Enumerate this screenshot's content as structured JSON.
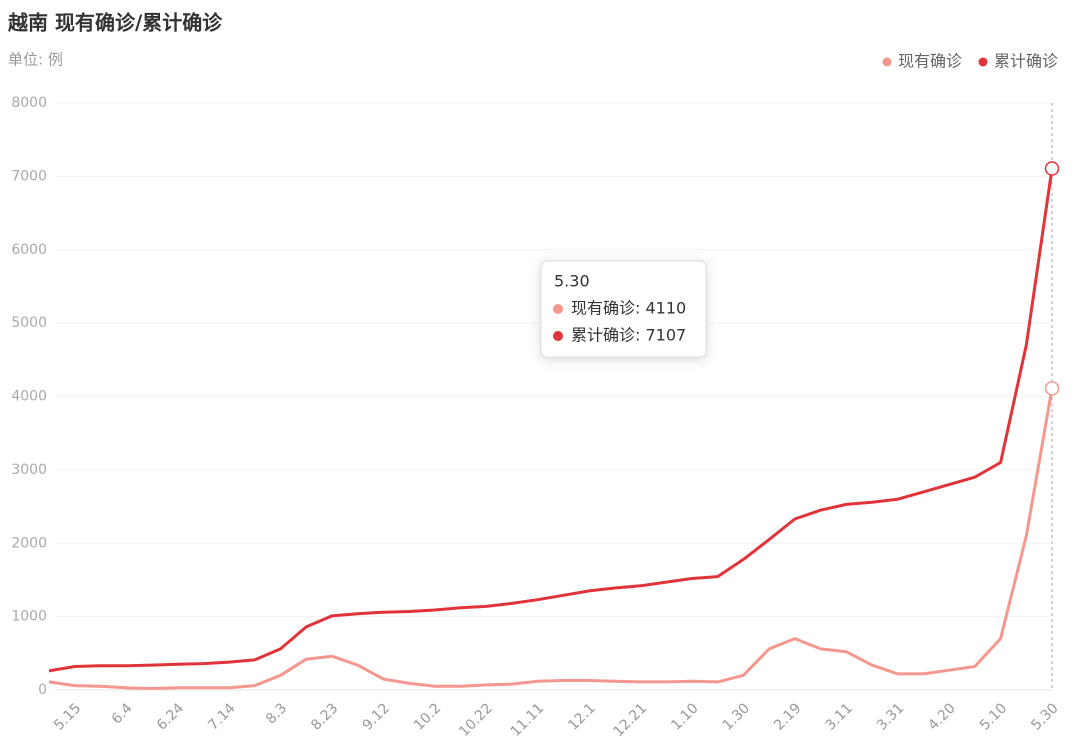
{
  "chart_data": {
    "type": "line",
    "title": "越南 现有确诊/累计确诊",
    "subtitle": "单位: 例",
    "categories": [
      null,
      "5.15",
      null,
      "6.4",
      null,
      "6.24",
      null,
      "7.14",
      null,
      "8.3",
      null,
      "8.23",
      null,
      "9.12",
      null,
      "10.2",
      null,
      "10.22",
      null,
      "11.11",
      null,
      "12.1",
      null,
      "12.21",
      null,
      "1.10",
      null,
      "1.30",
      null,
      "2.19",
      null,
      "3.11",
      null,
      "3.31",
      null,
      "4.20",
      null,
      "5.10",
      null,
      "5.30"
    ],
    "series": [
      {
        "name": "现有确诊",
        "color": "#f4978e",
        "values": [
          110,
          60,
          50,
          30,
          20,
          30,
          30,
          30,
          60,
          200,
          420,
          460,
          340,
          150,
          90,
          50,
          50,
          70,
          80,
          120,
          130,
          130,
          120,
          110,
          110,
          120,
          110,
          200,
          560,
          700,
          560,
          520,
          340,
          220,
          220,
          270,
          320,
          700,
          2100,
          4110
        ]
      },
      {
        "name": "累计确诊",
        "color": "#e0343a",
        "values": [
          260,
          320,
          330,
          330,
          340,
          350,
          360,
          380,
          410,
          560,
          860,
          1010,
          1040,
          1060,
          1070,
          1090,
          1120,
          1140,
          1180,
          1230,
          1290,
          1350,
          1390,
          1420,
          1470,
          1520,
          1545,
          1780,
          2050,
          2330,
          2450,
          2530,
          2560,
          2600,
          2700,
          2800,
          2900,
          3100,
          4700,
          7107
        ]
      }
    ],
    "ylim": [
      0,
      8000
    ],
    "yticks": [
      0,
      1000,
      2000,
      3000,
      4000,
      5000,
      6000,
      7000,
      8000
    ],
    "grid": true,
    "legend": "top-right",
    "tooltip": {
      "title": "5.30",
      "rows": [
        "现有确诊: 4110",
        "累计确诊: 7107"
      ]
    }
  }
}
